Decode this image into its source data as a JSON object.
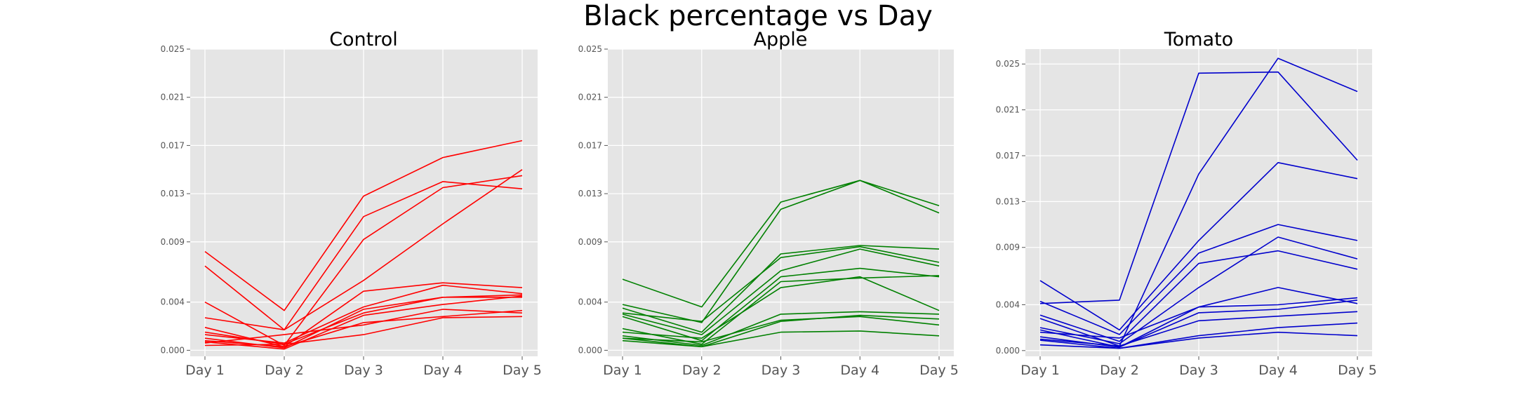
{
  "figure": {
    "title": "Black percentage vs Day"
  },
  "colors": {
    "panel_bg": "#e5e5e5",
    "grid": "#ffffff",
    "tick_text": "#555555"
  },
  "chart_data": [
    {
      "type": "line",
      "title": "Control",
      "color": "#ff0000",
      "x": [
        "Day 1",
        "Day 2",
        "Day 3",
        "Day 4",
        "Day 5"
      ],
      "yticks": [
        "0.000",
        "0.004",
        "0.009",
        "0.013",
        "0.017",
        "0.021",
        "0.025"
      ],
      "ylim": [
        -0.0005,
        0.025
      ],
      "grid": true,
      "series": [
        {
          "values": [
            0.0082,
            0.0033,
            0.0128,
            0.016,
            0.0174
          ]
        },
        {
          "values": [
            0.007,
            0.0017,
            0.0111,
            0.014,
            0.0134
          ]
        },
        {
          "values": [
            0.004,
            0.0004,
            0.0092,
            0.0135,
            0.0145
          ]
        },
        {
          "values": [
            0.0027,
            0.0017,
            0.0058,
            0.0105,
            0.015
          ]
        },
        {
          "values": [
            0.0019,
            0.0003,
            0.0049,
            0.0056,
            0.0052
          ]
        },
        {
          "values": [
            0.0013,
            0.0006,
            0.0036,
            0.0054,
            0.0047
          ]
        },
        {
          "values": [
            0.001,
            0.0002,
            0.0034,
            0.0044,
            0.0046
          ]
        },
        {
          "values": [
            0.0015,
            0.0005,
            0.0031,
            0.0044,
            0.0044
          ]
        },
        {
          "values": [
            0.0007,
            0.0001,
            0.0029,
            0.0038,
            0.0045
          ]
        },
        {
          "values": [
            0.0006,
            0.0013,
            0.0021,
            0.0034,
            0.0031
          ]
        },
        {
          "values": [
            0.0008,
            0.0003,
            0.0023,
            0.0028,
            0.0033
          ]
        },
        {
          "values": [
            0.0004,
            0.0005,
            0.0013,
            0.0027,
            0.0028
          ]
        }
      ]
    },
    {
      "type": "line",
      "title": "Apple",
      "color": "#008000",
      "x": [
        "Day 1",
        "Day 2",
        "Day 3",
        "Day 4",
        "Day 5"
      ],
      "yticks": [
        "0.000",
        "0.004",
        "0.009",
        "0.013",
        "0.017",
        "0.021",
        "0.025"
      ],
      "ylim": [
        -0.0005,
        0.025
      ],
      "grid": true,
      "series": [
        {
          "values": [
            0.0059,
            0.0036,
            0.0123,
            0.0141,
            0.012
          ]
        },
        {
          "values": [
            0.0038,
            0.0023,
            0.0117,
            0.0141,
            0.0114
          ]
        },
        {
          "values": [
            0.0035,
            0.0015,
            0.008,
            0.0087,
            0.0084
          ]
        },
        {
          "values": [
            0.0031,
            0.0024,
            0.0077,
            0.0086,
            0.0073
          ]
        },
        {
          "values": [
            0.003,
            0.0013,
            0.0066,
            0.0084,
            0.007
          ]
        },
        {
          "values": [
            0.0028,
            0.0008,
            0.0061,
            0.0068,
            0.0061
          ]
        },
        {
          "values": [
            0.0018,
            0.0005,
            0.0057,
            0.006,
            0.0062
          ]
        },
        {
          "values": [
            0.0015,
            0.001,
            0.0052,
            0.0061,
            0.0033
          ]
        },
        {
          "values": [
            0.0012,
            0.0004,
            0.003,
            0.0032,
            0.003
          ]
        },
        {
          "values": [
            0.001,
            0.0003,
            0.0024,
            0.0029,
            0.0026
          ]
        },
        {
          "values": [
            0.001,
            0.0007,
            0.0025,
            0.0028,
            0.0021
          ]
        },
        {
          "values": [
            0.0008,
            0.0003,
            0.0015,
            0.0016,
            0.0012
          ]
        }
      ]
    },
    {
      "type": "line",
      "title": "Tomato",
      "color": "#0000cc",
      "x": [
        "Day 1",
        "Day 2",
        "Day 3",
        "Day 4",
        "Day 5"
      ],
      "yticks": [
        "0.000",
        "0.004",
        "0.009",
        "0.013",
        "0.017",
        "0.021",
        "0.025"
      ],
      "ylim": [
        -0.0005,
        0.0263
      ],
      "grid": true,
      "series": [
        {
          "values": [
            0.0041,
            0.0044,
            0.0242,
            0.0243,
            0.0166
          ]
        },
        {
          "values": [
            0.0028,
            0.0004,
            0.0154,
            0.0255,
            0.0226
          ]
        },
        {
          "values": [
            0.0061,
            0.0018,
            0.0096,
            0.0164,
            0.015
          ]
        },
        {
          "values": [
            0.0043,
            0.0014,
            0.0085,
            0.011,
            0.0096
          ]
        },
        {
          "values": [
            0.0031,
            0.0008,
            0.0076,
            0.0087,
            0.0071
          ]
        },
        {
          "values": [
            0.002,
            0.0006,
            0.0055,
            0.0099,
            0.008
          ]
        },
        {
          "values": [
            0.0018,
            0.0003,
            0.0038,
            0.0055,
            0.0041
          ]
        },
        {
          "values": [
            0.0016,
            0.0011,
            0.0038,
            0.004,
            0.0046
          ]
        },
        {
          "values": [
            0.0012,
            0.0003,
            0.0033,
            0.0036,
            0.0044
          ]
        },
        {
          "values": [
            0.001,
            0.0004,
            0.0026,
            0.003,
            0.0034
          ]
        },
        {
          "values": [
            0.0009,
            0.0002,
            0.0013,
            0.002,
            0.0024
          ]
        },
        {
          "values": [
            0.0005,
            0.0002,
            0.0011,
            0.0016,
            0.0013
          ]
        }
      ]
    }
  ]
}
